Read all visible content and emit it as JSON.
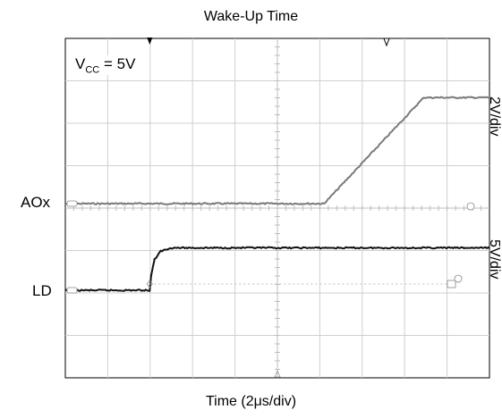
{
  "chart_data": {
    "type": "line",
    "title": "Wake-Up Time",
    "xlabel": "Time (2μs/div)",
    "x_unit": "μs",
    "xlim": [
      0,
      20
    ],
    "grid": true,
    "annotation": {
      "vcc_label": "V",
      "vcc_sub": "CC",
      "vcc_value": " = 5V"
    },
    "series": [
      {
        "name": "AOx",
        "scale": "2V/div",
        "color": "#7a7a7a",
        "x": [
          0,
          12.2,
          16.9,
          20
        ],
        "y": [
          0,
          0,
          5.0,
          5.0
        ]
      },
      {
        "name": "LD",
        "scale": "5V/div",
        "color": "#111111",
        "x": [
          0,
          3.98,
          4.05,
          4.2,
          4.5,
          5.0,
          20
        ],
        "y": [
          0,
          0,
          1.8,
          3.6,
          4.6,
          5.0,
          5.0
        ]
      }
    ]
  }
}
